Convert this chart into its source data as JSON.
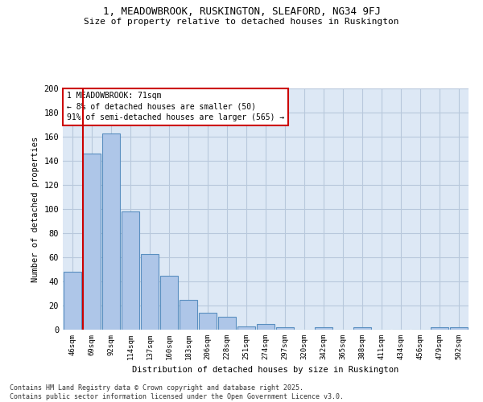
{
  "title1": "1, MEADOWBROOK, RUSKINGTON, SLEAFORD, NG34 9FJ",
  "title2": "Size of property relative to detached houses in Ruskington",
  "xlabel": "Distribution of detached houses by size in Ruskington",
  "ylabel": "Number of detached properties",
  "categories": [
    "46sqm",
    "69sqm",
    "92sqm",
    "114sqm",
    "137sqm",
    "160sqm",
    "183sqm",
    "206sqm",
    "228sqm",
    "251sqm",
    "274sqm",
    "297sqm",
    "320sqm",
    "342sqm",
    "365sqm",
    "388sqm",
    "411sqm",
    "434sqm",
    "456sqm",
    "479sqm",
    "502sqm"
  ],
  "values": [
    48,
    146,
    163,
    98,
    63,
    45,
    25,
    14,
    11,
    3,
    5,
    2,
    0,
    2,
    0,
    2,
    0,
    0,
    0,
    2,
    2
  ],
  "bar_color": "#aec6e8",
  "bar_edge_color": "#5a8fc0",
  "ylim": [
    0,
    200
  ],
  "yticks": [
    0,
    20,
    40,
    60,
    80,
    100,
    120,
    140,
    160,
    180,
    200
  ],
  "annotation_text1": "1 MEADOWBROOK: 71sqm",
  "annotation_text2": "← 8% of detached houses are smaller (50)",
  "annotation_text3": "91% of semi-detached houses are larger (565) →",
  "vline_color": "#cc0000",
  "annotation_box_edge": "#cc0000",
  "bg_color": "#dde8f5",
  "grid_color": "#b8c8dc",
  "footer1": "Contains HM Land Registry data © Crown copyright and database right 2025.",
  "footer2": "Contains public sector information licensed under the Open Government Licence v3.0."
}
